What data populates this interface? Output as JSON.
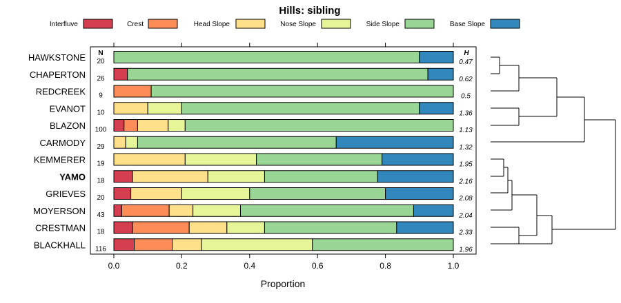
{
  "chart_data": {
    "type": "bar",
    "orientation": "horizontal",
    "stacked": true,
    "title": "Hills: sibling",
    "xlabel": "Proportion",
    "xlim": [
      0,
      1
    ],
    "x_ticks": [
      "0.0",
      "0.2",
      "0.4",
      "0.6",
      "0.8",
      "1.0"
    ],
    "x_tick_values": [
      0,
      0.2,
      0.4,
      0.6,
      0.8,
      1.0
    ],
    "n_header": "N",
    "h_header": "H",
    "highlight": "YAMO",
    "legend": [
      {
        "name": "Interfluve",
        "color": "#d53e4f"
      },
      {
        "name": "Crest",
        "color": "#fc8d59"
      },
      {
        "name": "Head Slope",
        "color": "#fee08b"
      },
      {
        "name": "Nose Slope",
        "color": "#e6f598"
      },
      {
        "name": "Side Slope",
        "color": "#99d594"
      },
      {
        "name": "Base Slope",
        "color": "#3288bd"
      }
    ],
    "rows": [
      {
        "name": "HAWKSTONE",
        "n": "20",
        "h": "0.47",
        "values": [
          0,
          0,
          0,
          0,
          0.9,
          0.1
        ]
      },
      {
        "name": "CHAPERTON",
        "n": "26",
        "h": "0.62",
        "values": [
          0.04,
          0,
          0,
          0,
          0.885,
          0.075
        ]
      },
      {
        "name": "REDCREEK",
        "n": "9",
        "h": "0.5",
        "values": [
          0,
          0.11,
          0,
          0,
          0.89,
          0
        ]
      },
      {
        "name": "EVANOT",
        "n": "10",
        "h": "1.36",
        "values": [
          0,
          0,
          0.1,
          0.1,
          0.7,
          0.1
        ]
      },
      {
        "name": "BLAZON",
        "n": "100",
        "h": "1.13",
        "values": [
          0.03,
          0.04,
          0.09,
          0.05,
          0.79,
          0
        ]
      },
      {
        "name": "CARMODY",
        "n": "29",
        "h": "1.32",
        "values": [
          0,
          0,
          0.035,
          0.035,
          0.585,
          0.345
        ]
      },
      {
        "name": "KEMMERER",
        "n": "19",
        "h": "1.95",
        "values": [
          0,
          0,
          0.21,
          0.21,
          0.37,
          0.21
        ]
      },
      {
        "name": "YAMO",
        "n": "18",
        "h": "2.16",
        "values": [
          0.055,
          0,
          0.222,
          0.167,
          0.333,
          0.223
        ]
      },
      {
        "name": "GRIEVES",
        "n": "20",
        "h": "2.08",
        "values": [
          0.05,
          0,
          0.15,
          0.2,
          0.4,
          0.2
        ]
      },
      {
        "name": "MOYERSON",
        "n": "43",
        "h": "2.04",
        "values": [
          0.023,
          0.14,
          0.07,
          0.14,
          0.51,
          0.117
        ]
      },
      {
        "name": "CRESTMAN",
        "n": "18",
        "h": "2.33",
        "values": [
          0.055,
          0.167,
          0.111,
          0.111,
          0.389,
          0.167
        ]
      },
      {
        "name": "BLACKHALL",
        "n": "116",
        "h": "1.96",
        "values": [
          0.06,
          0.112,
          0.086,
          0.327,
          0.415,
          0
        ]
      }
    ]
  }
}
